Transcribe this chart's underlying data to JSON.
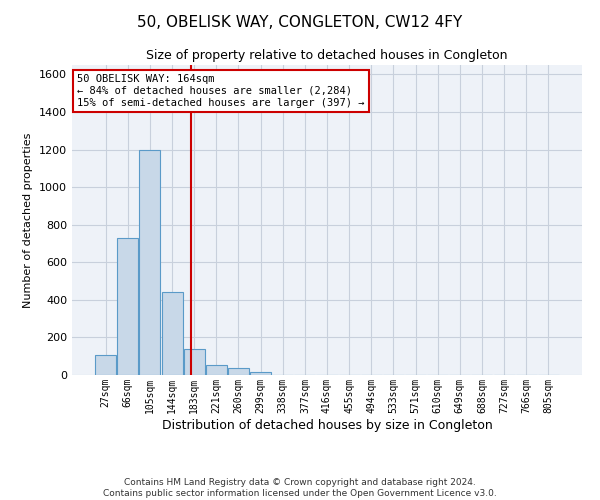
{
  "title": "50, OBELISK WAY, CONGLETON, CW12 4FY",
  "subtitle": "Size of property relative to detached houses in Congleton",
  "xlabel": "Distribution of detached houses by size in Congleton",
  "ylabel": "Number of detached properties",
  "footer_line1": "Contains HM Land Registry data © Crown copyright and database right 2024.",
  "footer_line2": "Contains public sector information licensed under the Open Government Licence v3.0.",
  "bar_labels": [
    "27sqm",
    "66sqm",
    "105sqm",
    "144sqm",
    "183sqm",
    "221sqm",
    "260sqm",
    "299sqm",
    "338sqm",
    "377sqm",
    "416sqm",
    "455sqm",
    "494sqm",
    "533sqm",
    "571sqm",
    "610sqm",
    "649sqm",
    "688sqm",
    "727sqm",
    "766sqm",
    "805sqm"
  ],
  "bar_values": [
    105,
    730,
    1200,
    440,
    140,
    55,
    35,
    15,
    0,
    0,
    0,
    0,
    0,
    0,
    0,
    0,
    0,
    0,
    0,
    0,
    0
  ],
  "bar_color": "#c8d8e8",
  "bar_edge_color": "#5a9ac8",
  "grid_color": "#c8d0dc",
  "bg_color": "#eef2f8",
  "ylim": [
    0,
    1650
  ],
  "yticks": [
    0,
    200,
    400,
    600,
    800,
    1000,
    1200,
    1400,
    1600
  ],
  "annotation_line1": "50 OBELISK WAY: 164sqm",
  "annotation_line2": "← 84% of detached houses are smaller (2,284)",
  "annotation_line3": "15% of semi-detached houses are larger (397) →",
  "vline_x": 3.87,
  "red_line_color": "#cc0000",
  "annotation_border_color": "#cc0000"
}
